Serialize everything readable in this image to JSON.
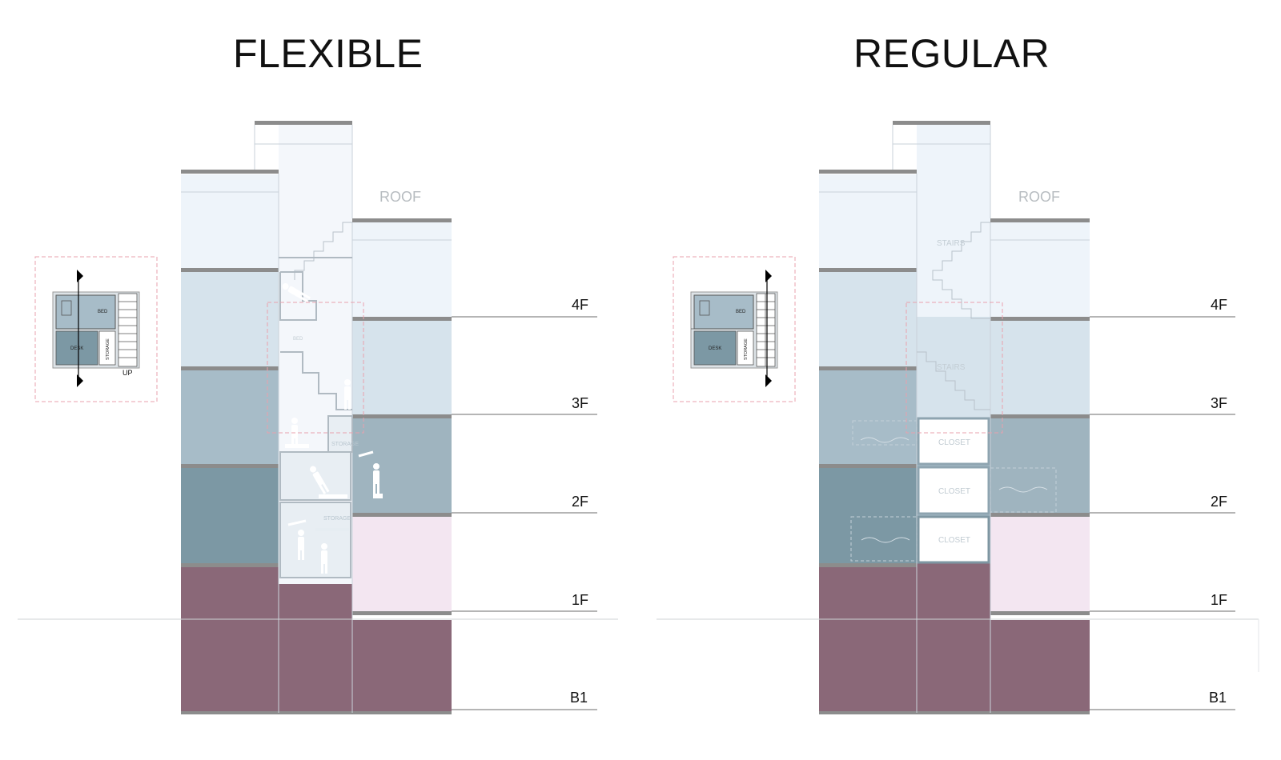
{
  "titles": {
    "left": "FLEXIBLE",
    "right": "REGULAR"
  },
  "levels": [
    "4F",
    "3F",
    "2F",
    "1F",
    "B1"
  ],
  "roof_label": "ROOF",
  "flexible": {
    "inset_labels": {
      "bed": "BED",
      "desk": "DESK",
      "storage": "STORAGE",
      "up": "UP"
    },
    "section_labels": {
      "storage_upper": "STORAGE",
      "storage_lower": "STORAGE",
      "bed": "BED"
    }
  },
  "regular": {
    "inset_labels": {
      "bed": "BED",
      "desk": "DESK",
      "storage": "STORAGE"
    },
    "stairs_labels": [
      "STAIRS",
      "STAIRS"
    ],
    "closets": [
      "CLOSET",
      "CLOSET",
      "CLOSET"
    ]
  },
  "colors": {
    "basement": "#8a6878",
    "floor_1": "#f3e6f1",
    "floor_2": "#7c98a4",
    "floor_3": "#a7bcc8",
    "floor_4": "#d6e3ec",
    "roof_level": "#eef4fa",
    "slab": "#8c8c8c",
    "highlight": "#e9a0ad"
  }
}
